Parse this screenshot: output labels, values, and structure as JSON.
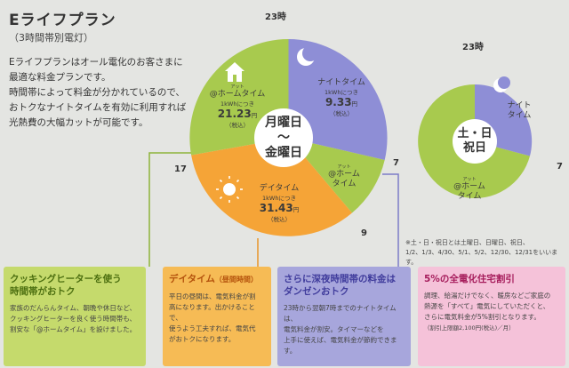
{
  "title": "Eライフプラン",
  "subtitle": "（3時間帯別電灯）",
  "intro": {
    "line1": "Eライフプランはオール電化のお客さまに",
    "line2": "最適な料金プランです。",
    "line3": "時間帯によって料金が分かれているので、",
    "line4": "おトクなナイトタイムを有効に利用すれば",
    "line5": "光熱費の大幅カットが可能です。"
  },
  "weekday": {
    "center_line1": "月曜日",
    "center_line2": "～",
    "center_line3": "金曜日",
    "hours": {
      "h23": "23時",
      "h7": "7",
      "h9": "9",
      "h17": "17"
    },
    "night": {
      "label": "ナイトタイム",
      "unit": "1kWhにつき",
      "price": "9.33",
      "yen": "円",
      "tax": "（税込）"
    },
    "home": {
      "ruby": "アット",
      "label": "@ホームタイム",
      "unit": "1kWhにつき",
      "price": "21.23",
      "yen": "円",
      "tax": "（税込）"
    },
    "home_small": {
      "ruby": "アット",
      "line1": "@ホーム",
      "line2": "タイム"
    },
    "day": {
      "label": "デイタイム",
      "unit": "1kWhにつき",
      "price": "31.43",
      "yen": "円",
      "tax": "（税込）"
    }
  },
  "weekend": {
    "center_line1": "土・日",
    "center_line2": "祝日",
    "hours": {
      "h23": "23時",
      "h7": "7"
    },
    "night": {
      "line1": "ナイト",
      "line2": "タイム"
    },
    "home": {
      "ruby": "アット",
      "line1": "@ホーム",
      "line2": "タイム"
    }
  },
  "note": {
    "line1": "※土・日・祝日とは土曜日、日曜日、祝日、",
    "line2": "1/2、1/3、4/30、5/1、5/2、12/30、12/31をいいます。"
  },
  "cards": [
    {
      "head1": "クッキングヒーターを使う",
      "head2": "時間帯がおトク",
      "body1": "家族のだんらんタイム、朝晩や休日など、",
      "body2": "クッキングヒーターを良く使う時間帯も、",
      "body3": "割安な「@ホームタイム」を設けました。",
      "body4": ""
    },
    {
      "head1": "デイタイム",
      "head1b": "（昼間時間）",
      "head2": "",
      "body1": "平日の昼間は、電気料金が割",
      "body2": "高になります。出かけることで、",
      "body3": "使うよう工夫すれば、電気代",
      "body4": "がおトクになります。"
    },
    {
      "head1": "さらに深夜時間帯の料金は",
      "head2": "ダンゼンおトク",
      "body1": "23時から翌朝7時までのナイトタイムは、",
      "body2": "電気料金が割安。タイマーなどを",
      "body3": "上手に使えば、電気料金が節約できます。",
      "body4": ""
    },
    {
      "head1": "5%の全電化住宅割引",
      "head2": "",
      "body1": "調理、給湯だけでなく、暖房などご家庭の",
      "body2": "熱源を「すべて」電気にしていただくと、",
      "body3": "さらに電気料金が5%割引となります。",
      "body4": "（割引上限額2,100円(税込)／月）"
    }
  ],
  "colors": {
    "night": "#8e8ed6",
    "home": "#a8ca4e",
    "day": "#f5a437",
    "background": "#e4e5e2"
  },
  "icons": [
    "house-icon",
    "moon-icon",
    "sun-icon"
  ]
}
